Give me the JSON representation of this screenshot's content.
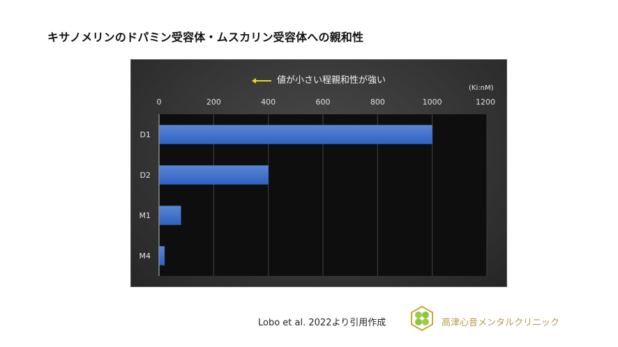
{
  "title": "キサノメリンのドパミン受容体・ムスカリン受容体への親和性",
  "annotation": "値が小さい程親和性が強い",
  "unit_label": "(Ki:nM)",
  "citation": "Lobo et al. 2022より引用作成",
  "clinic_name": "高津心音メンタルクリニック",
  "colors": {
    "bar": "#4472c4",
    "arrow": "#e8d820",
    "clinic_text": "#b59a4a"
  },
  "chart_data": {
    "type": "bar",
    "orientation": "horizontal",
    "title": "キサノメリンのドパミン受容体・ムスカリン受容体への親和性",
    "annotation": "値が小さい程親和性が強い",
    "categories": [
      "D1",
      "D2",
      "M1",
      "M4"
    ],
    "values": [
      1000,
      400,
      80,
      20
    ],
    "xlabel": "(Ki:nM)",
    "ylabel": "",
    "xlim": [
      0,
      1200
    ],
    "xticks": [
      "0",
      "200",
      "400",
      "600",
      "800",
      "1000",
      "1200"
    ],
    "x_axis_position": "top",
    "grid": true,
    "legend": "none"
  }
}
